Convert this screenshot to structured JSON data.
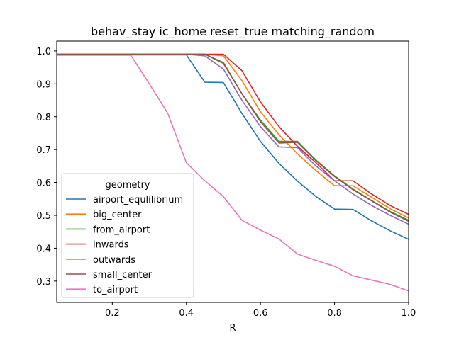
{
  "chart_data": {
    "type": "line",
    "title": "behav_stay ic_home reset_true matching_random",
    "xlabel": "R",
    "ylabel": "",
    "xlim": [
      0.05,
      1.0
    ],
    "ylim": [
      0.235,
      1.03
    ],
    "xticks": [
      0.2,
      0.4,
      0.6,
      0.8,
      1.0
    ],
    "xtick_labels": [
      "0.2",
      "0.4",
      "0.6",
      "0.8",
      "1.0"
    ],
    "yticks": [
      0.3,
      0.4,
      0.5,
      0.6,
      0.7,
      0.8,
      0.9,
      1.0
    ],
    "ytick_labels": [
      "0.3",
      "0.4",
      "0.5",
      "0.6",
      "0.7",
      "0.8",
      "0.9",
      "1.0"
    ],
    "grid": false,
    "legend": {
      "title": "geometry",
      "placement": "lower-left"
    },
    "x": [
      0.05,
      0.1,
      0.15,
      0.2,
      0.25,
      0.3,
      0.35,
      0.4,
      0.45,
      0.5,
      0.55,
      0.6,
      0.65,
      0.7,
      0.75,
      0.8,
      0.85,
      0.9,
      0.95,
      1.0
    ],
    "series": [
      {
        "name": "airport_equlilibrium",
        "color": "#1f77b4",
        "values": [
          0.988,
          0.988,
          0.988,
          0.988,
          0.988,
          0.988,
          0.988,
          0.988,
          0.905,
          0.904,
          0.81,
          0.725,
          0.658,
          0.604,
          0.557,
          0.519,
          0.518,
          0.483,
          0.453,
          0.427
        ]
      },
      {
        "name": "big_center",
        "color": "#ff7f0e",
        "values": [
          0.99,
          0.99,
          0.99,
          0.99,
          0.99,
          0.99,
          0.99,
          0.99,
          0.99,
          0.985,
          0.91,
          0.815,
          0.745,
          0.687,
          0.636,
          0.59,
          0.59,
          0.555,
          0.52,
          0.492
        ]
      },
      {
        "name": "from_airport",
        "color": "#2ca02c",
        "values": [
          0.99,
          0.99,
          0.99,
          0.99,
          0.99,
          0.99,
          0.99,
          0.99,
          0.99,
          0.965,
          0.87,
          0.79,
          0.725,
          0.725,
          0.668,
          0.62,
          0.58,
          0.545,
          0.512,
          0.485
        ]
      },
      {
        "name": "inwards",
        "color": "#d62728",
        "values": [
          0.99,
          0.99,
          0.99,
          0.99,
          0.99,
          0.99,
          0.99,
          0.99,
          0.99,
          0.99,
          0.94,
          0.845,
          0.77,
          0.71,
          0.66,
          0.605,
          0.605,
          0.565,
          0.53,
          0.503
        ]
      },
      {
        "name": "outwards",
        "color": "#9467bd",
        "values": [
          0.99,
          0.99,
          0.99,
          0.99,
          0.99,
          0.99,
          0.99,
          0.99,
          0.985,
          0.945,
          0.85,
          0.77,
          0.708,
          0.706,
          0.65,
          0.605,
          0.565,
          0.53,
          0.5,
          0.473
        ]
      },
      {
        "name": "small_center",
        "color": "#8c564b",
        "values": [
          0.99,
          0.99,
          0.99,
          0.99,
          0.99,
          0.99,
          0.99,
          0.99,
          0.99,
          0.962,
          0.87,
          0.785,
          0.72,
          0.722,
          0.666,
          0.618,
          0.578,
          0.544,
          0.51,
          0.482
        ]
      },
      {
        "name": "to_airport",
        "color": "#e377c2",
        "values": [
          0.987,
          0.987,
          0.987,
          0.987,
          0.987,
          0.9,
          0.81,
          0.66,
          0.605,
          0.557,
          0.485,
          0.455,
          0.428,
          0.382,
          0.363,
          0.345,
          0.316,
          0.303,
          0.29,
          0.27
        ]
      }
    ]
  }
}
